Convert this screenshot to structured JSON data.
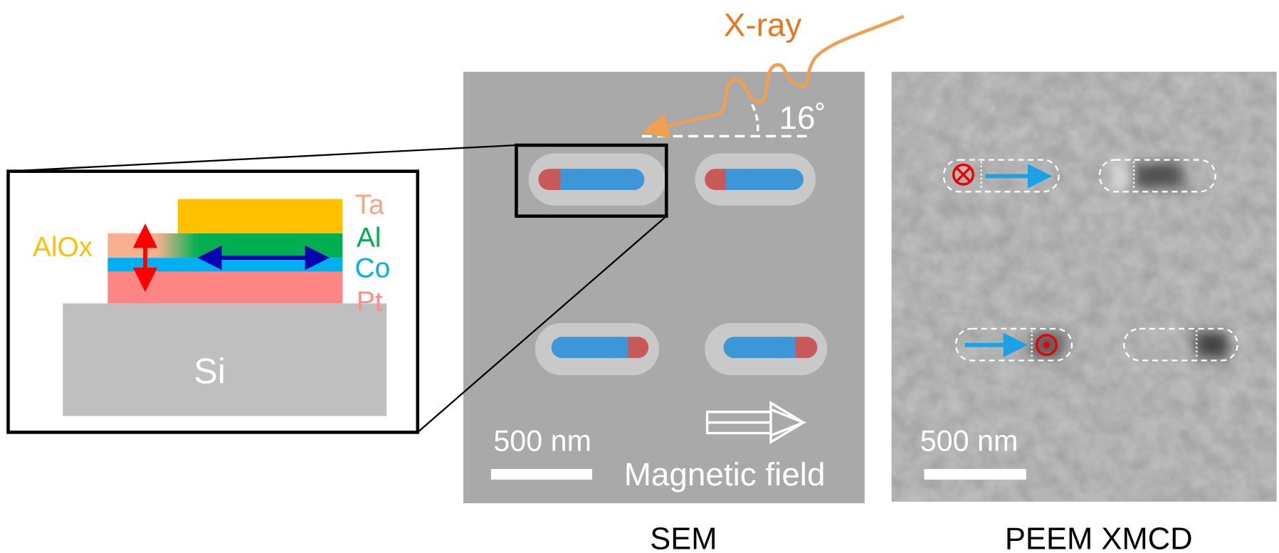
{
  "xray": "X-ray",
  "angle": "16˚",
  "stack": {
    "ta": "Ta",
    "al": "Al",
    "co": "Co",
    "pt": "Pt",
    "alox": "AlOx",
    "substrate": "Si"
  },
  "sem": {
    "scale_bar": "500 nm",
    "field": "Magnetic field",
    "caption": "SEM"
  },
  "peem": {
    "scale_bar": "500 nm",
    "caption": "PEEM XMCD"
  }
}
